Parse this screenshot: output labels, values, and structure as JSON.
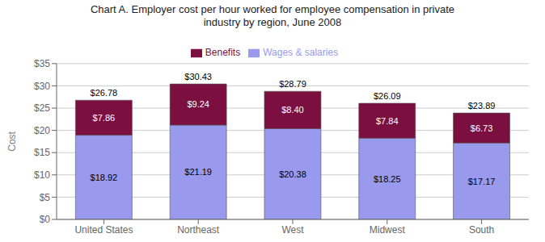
{
  "chart_data": {
    "type": "bar",
    "stacked": true,
    "title": "Chart A. Employer cost per hour worked for employee compensation in private\nindustry by region, June 2008",
    "categories": [
      "United States",
      "Northeast",
      "West",
      "Midwest",
      "South"
    ],
    "series": [
      {
        "name": "Wages & salaries",
        "color": "#9999EE",
        "values": [
          18.92,
          21.19,
          20.38,
          18.25,
          17.17
        ],
        "value_labels": [
          "$18.92",
          "$21.19",
          "$20.38",
          "$18.25",
          "$17.17"
        ]
      },
      {
        "name": "Benefits",
        "color": "#7B1040",
        "values": [
          7.86,
          9.24,
          8.4,
          7.84,
          6.73
        ],
        "value_labels": [
          "$7.86",
          "$9.24",
          "$8.40",
          "$7.84",
          "$6.73"
        ]
      }
    ],
    "totals": [
      26.78,
      30.43,
      28.79,
      26.09,
      23.89
    ],
    "total_labels": [
      "$26.78",
      "$30.43",
      "$28.79",
      "$26.09",
      "$23.89"
    ],
    "data_labels": true,
    "ylabel": "Cost",
    "ylim": [
      0,
      35
    ],
    "yticks": [
      {
        "value": 0,
        "label": "$0"
      },
      {
        "value": 5,
        "label": "$5"
      },
      {
        "value": 10,
        "label": "$10"
      },
      {
        "value": 15,
        "label": "$15"
      },
      {
        "value": 20,
        "label": "$20"
      },
      {
        "value": 25,
        "label": "$25"
      },
      {
        "value": 30,
        "label": "$30"
      },
      {
        "value": 35,
        "label": "$35"
      }
    ],
    "grid": true,
    "legend": "top"
  }
}
